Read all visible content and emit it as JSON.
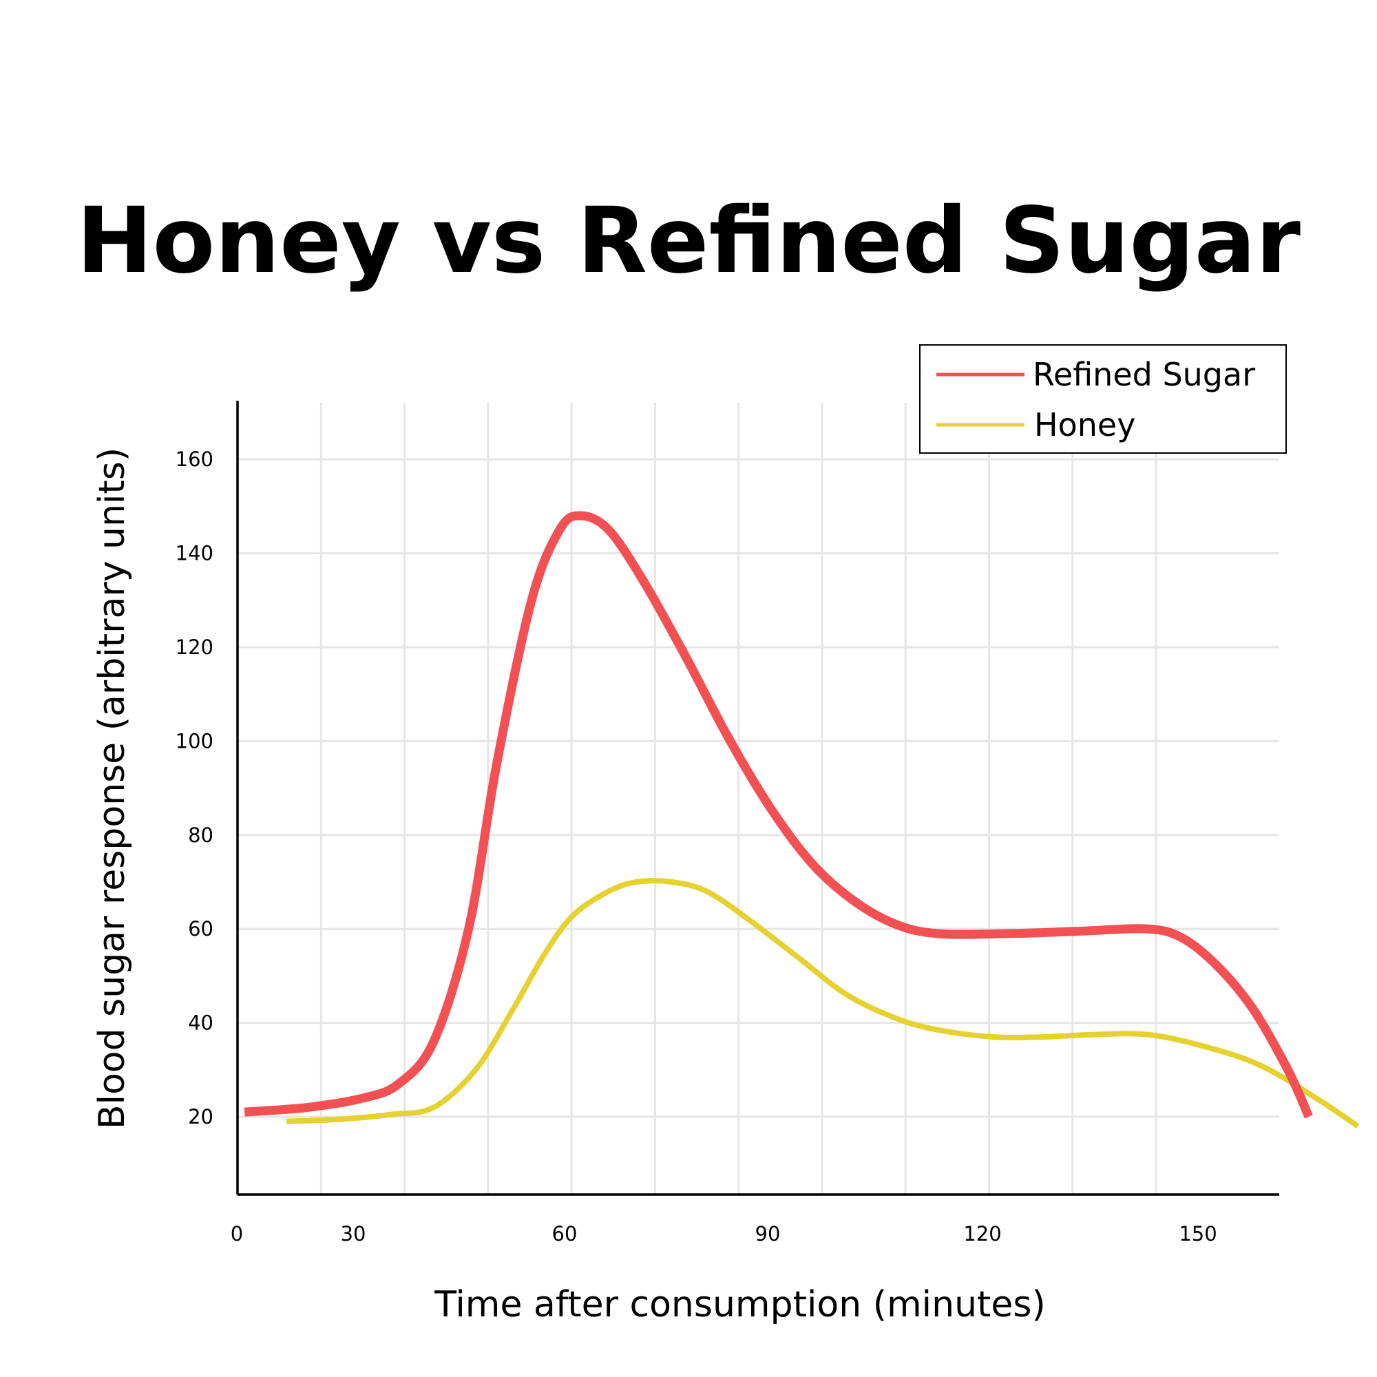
{
  "chart_data": {
    "type": "line",
    "title": "Honey vs Refined Sugar",
    "xlabel": "Time after consumption (minutes)",
    "ylabel": "Blood sugar response (arbitrary units)",
    "x_ticks": [
      "0",
      "30",
      "60",
      "90",
      "120",
      "150"
    ],
    "y_ticks": [
      "20",
      "40",
      "60",
      "80",
      "100",
      "120",
      "140",
      "160"
    ],
    "legend_position": "top-right",
    "grid": true,
    "series": [
      {
        "name": "Refined Sugar",
        "color": "#f25052",
        "points": [
          [
            1,
            21
          ],
          [
            10,
            22
          ],
          [
            18,
            24
          ],
          [
            23,
            27
          ],
          [
            28,
            36
          ],
          [
            33,
            60
          ],
          [
            37,
            95
          ],
          [
            42,
            130
          ],
          [
            46,
            145
          ],
          [
            49,
            148
          ],
          [
            53,
            145
          ],
          [
            58,
            134
          ],
          [
            64,
            118
          ],
          [
            70,
            101
          ],
          [
            76,
            86
          ],
          [
            82,
            74
          ],
          [
            88,
            66
          ],
          [
            94,
            61
          ],
          [
            100,
            59
          ],
          [
            110,
            59
          ],
          [
            120,
            59.5
          ],
          [
            130,
            60
          ],
          [
            135,
            58
          ],
          [
            140,
            52
          ],
          [
            145,
            43
          ],
          [
            150,
            30
          ],
          [
            153,
            20
          ]
        ]
      },
      {
        "name": "Honey",
        "color": "#e5d230",
        "points": [
          [
            7,
            19
          ],
          [
            15,
            19.5
          ],
          [
            22,
            20.5
          ],
          [
            28,
            22
          ],
          [
            34,
            30
          ],
          [
            39,
            42
          ],
          [
            44,
            55
          ],
          [
            48,
            63
          ],
          [
            53,
            68
          ],
          [
            57,
            70
          ],
          [
            62,
            70
          ],
          [
            67,
            68
          ],
          [
            73,
            62
          ],
          [
            80,
            54
          ],
          [
            87,
            46
          ],
          [
            94,
            41
          ],
          [
            100,
            38.5
          ],
          [
            108,
            37
          ],
          [
            115,
            37
          ],
          [
            122,
            37.5
          ],
          [
            130,
            37.5
          ],
          [
            138,
            35
          ],
          [
            146,
            31
          ],
          [
            154,
            24
          ],
          [
            160,
            18
          ]
        ]
      }
    ]
  }
}
